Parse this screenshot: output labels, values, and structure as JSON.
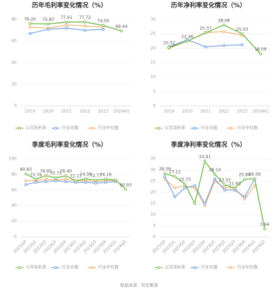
{
  "chart_data": [
    {
      "type": "line",
      "title": "历年毛利率变化情况（%）",
      "categories": [
        "2019",
        "2020",
        "2021",
        "2022",
        "2023",
        "2024H1"
      ],
      "series": [
        {
          "name": "公司毛利率",
          "color": "#6cb33f",
          "values": [
            76.2,
            75.87,
            77.61,
            77.72,
            74.5,
            69.44
          ],
          "value_labels": [
            "76.20",
            "75.87",
            "77.61",
            "77.72",
            "74.50",
            "69.44"
          ]
        },
        {
          "name": "行业均值",
          "color": "#5b8fd6",
          "values": [
            67,
            71,
            72,
            70,
            71,
            null
          ]
        },
        {
          "name": "行业中位数",
          "color": "#f0a35a",
          "values": [
            73,
            72,
            75,
            74,
            73,
            null
          ]
        }
      ],
      "ylim": [
        0,
        80
      ],
      "yticks": [
        0,
        20,
        40,
        60,
        80
      ],
      "grid": true
    },
    {
      "type": "line",
      "title": "历年净利率变化情况（%）",
      "categories": [
        "2019",
        "2020",
        "2021",
        "2022",
        "2023",
        "2024H1"
      ],
      "series": [
        {
          "name": "公司净利率",
          "color": "#6cb33f",
          "values": [
            20.32,
            22.46,
            25.37,
            28.08,
            25.03,
            18.09
          ],
          "value_labels": [
            "20.32",
            "22.46",
            "25.37",
            "28.08",
            "25.03",
            "18.09"
          ]
        },
        {
          "name": "行业均值",
          "color": "#5b8fd6",
          "values": [
            20.5,
            23,
            20.5,
            21,
            21.2,
            null
          ]
        },
        {
          "name": "行业中位数",
          "color": "#f0a35a",
          "values": [
            20,
            22.5,
            25.5,
            25.8,
            24.5,
            null
          ]
        }
      ],
      "ylim": [
        0,
        30
      ],
      "yticks": [
        0,
        5,
        10,
        15,
        20,
        25,
        30
      ],
      "grid": true
    },
    {
      "type": "line",
      "title": "季度毛利率变化情况（%）",
      "categories": [
        "2021Q4",
        "2022Q1",
        "2022Q2",
        "2022Q3",
        "2022Q4",
        "2023Q1",
        "2023Q2",
        "2023Q3",
        "2023Q4",
        "2024Q1",
        "2024Q2"
      ],
      "series": [
        {
          "name": "公司毛利率",
          "color": "#6cb33f",
          "values": [
            80.83,
            73.79,
            78.65,
            75.73,
            78.4,
            72.13,
            74.39,
            72.77,
            74.16,
            73,
            60.93
          ],
          "value_labels": [
            "80.83",
            "73.79",
            "78.65",
            "75.73",
            "78.40",
            "72.13",
            "74.39",
            "72.77",
            "74.16",
            null,
            "60.93"
          ]
        },
        {
          "name": "行业均值",
          "color": "#5b8fd6",
          "values": [
            67,
            70,
            71,
            72,
            71,
            70,
            70,
            69,
            70,
            71,
            null
          ]
        },
        {
          "name": "行业中位数",
          "color": "#f0a35a",
          "values": [
            72,
            72,
            74,
            73,
            74,
            72,
            72,
            71,
            72,
            72,
            null
          ]
        }
      ],
      "ylim": [
        0,
        100
      ],
      "yticks": [
        0,
        20,
        40,
        60,
        80,
        100
      ],
      "grid": true
    },
    {
      "type": "line",
      "title": "季度净利率变化情况（%）",
      "categories": [
        "2021Q4",
        "2022Q1",
        "2022Q2",
        "2022Q3",
        "2022Q4",
        "2023Q1",
        "2023Q2",
        "2023Q3",
        "2023Q4",
        "2024Q1",
        "2024Q2"
      ],
      "series": [
        {
          "name": "公司净利率",
          "color": "#6cb33f",
          "values": [
            28.39,
            27.12,
            23.73,
            15,
            33.91,
            28.14,
            23.37,
            21.93,
            25.86,
            26.09,
            3.64
          ],
          "value_labels": [
            "28.39",
            "27.12",
            "23.73",
            null,
            "33.91",
            "28.14",
            "23.37",
            "21.93",
            "25.86",
            "26.09",
            "3.64"
          ]
        },
        {
          "name": "行业均值",
          "color": "#5b8fd6",
          "values": [
            27,
            18,
            22,
            23,
            15,
            26,
            21,
            21,
            18,
            26,
            null
          ]
        },
        {
          "name": "行业中位数",
          "color": "#f0a35a",
          "values": [
            26,
            22,
            23,
            22,
            14,
            25,
            22,
            22,
            17,
            23,
            null
          ]
        }
      ],
      "ylim": [
        0,
        35
      ],
      "yticks": [
        0,
        5,
        10,
        15,
        20,
        25,
        30,
        35
      ],
      "grid": true
    }
  ],
  "footer": "数据来源：恒生聚源"
}
